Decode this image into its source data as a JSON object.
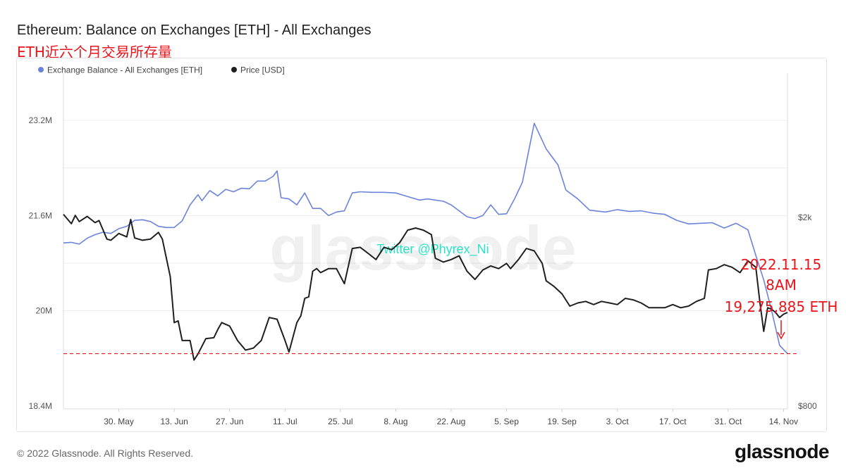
{
  "header": {
    "title": "Ethereum: Balance on Exchanges [ETH] - All Exchanges",
    "subtitle": "ETH近六个月交易所存量"
  },
  "footer": {
    "copyright": "© 2022 Glassnode. All Rights Reserved.",
    "brand": "glassnode"
  },
  "colors": {
    "balance": "#6b84db",
    "price": "#1f1f1f",
    "annotation": "#e8141b",
    "watermark_text": "#2be3c3"
  },
  "chart_data": {
    "type": "line",
    "title": "Ethereum: Balance on Exchanges [ETH] - All Exchanges",
    "x_ticks": [
      "30. May",
      "13. Jun",
      "27. Jun",
      "11. Jul",
      "25. Jul",
      "8. Aug",
      "22. Aug",
      "5. Sep",
      "19. Sep",
      "3. Oct",
      "17. Oct",
      "31. Oct",
      "14. Nov"
    ],
    "x_start": "2022-05-16",
    "x_end": "2022-11-15",
    "y_left": {
      "ticks": [
        "23.2M",
        "21.6M",
        "20M",
        "18.4M"
      ],
      "range": [
        18.4,
        23.2
      ],
      "unit": "M ETH"
    },
    "y_right": {
      "ticks": [
        "$2k",
        "$800"
      ],
      "scale": "log",
      "range": [
        800,
        2000
      ]
    },
    "grid": true,
    "legend_position": "top-left",
    "legend": [
      "Exchange Balance - All Exchanges [ETH]",
      "Price [USD]"
    ],
    "series": [
      {
        "name": "Exchange Balance - All Exchanges [ETH]",
        "axis": "left",
        "points": [
          [
            "2022-05-16",
            21.14
          ],
          [
            "2022-05-18",
            21.15
          ],
          [
            "2022-05-20",
            21.12
          ],
          [
            "2022-05-22",
            21.22
          ],
          [
            "2022-05-24",
            21.28
          ],
          [
            "2022-05-26",
            21.32
          ],
          [
            "2022-05-28",
            21.3
          ],
          [
            "2022-05-30",
            21.38
          ],
          [
            "2022-06-01",
            21.42
          ],
          [
            "2022-06-03",
            21.52
          ],
          [
            "2022-06-05",
            21.53
          ],
          [
            "2022-06-07",
            21.5
          ],
          [
            "2022-06-09",
            21.42
          ],
          [
            "2022-06-11",
            21.4
          ],
          [
            "2022-06-13",
            21.4
          ],
          [
            "2022-06-15",
            21.51
          ],
          [
            "2022-06-17",
            21.78
          ],
          [
            "2022-06-19",
            21.95
          ],
          [
            "2022-06-20",
            21.85
          ],
          [
            "2022-06-22",
            22.02
          ],
          [
            "2022-06-24",
            21.93
          ],
          [
            "2022-06-26",
            22.04
          ],
          [
            "2022-06-28",
            22.0
          ],
          [
            "2022-06-30",
            22.06
          ],
          [
            "2022-07-02",
            22.05
          ],
          [
            "2022-07-04",
            22.18
          ],
          [
            "2022-07-06",
            22.18
          ],
          [
            "2022-07-08",
            22.26
          ],
          [
            "2022-07-09",
            22.35
          ],
          [
            "2022-07-10",
            21.9
          ],
          [
            "2022-07-12",
            21.88
          ],
          [
            "2022-07-14",
            21.78
          ],
          [
            "2022-07-16",
            21.98
          ],
          [
            "2022-07-18",
            21.72
          ],
          [
            "2022-07-20",
            21.72
          ],
          [
            "2022-07-22",
            21.6
          ],
          [
            "2022-07-24",
            21.66
          ],
          [
            "2022-07-26",
            21.68
          ],
          [
            "2022-07-28",
            21.98
          ],
          [
            "2022-07-30",
            22.0
          ],
          [
            "2022-08-02",
            21.99
          ],
          [
            "2022-08-05",
            21.99
          ],
          [
            "2022-08-08",
            21.98
          ],
          [
            "2022-08-10",
            21.94
          ],
          [
            "2022-08-12",
            21.9
          ],
          [
            "2022-08-14",
            21.86
          ],
          [
            "2022-08-16",
            21.88
          ],
          [
            "2022-08-18",
            21.86
          ],
          [
            "2022-08-20",
            21.84
          ],
          [
            "2022-08-22",
            21.78
          ],
          [
            "2022-08-24",
            21.68
          ],
          [
            "2022-08-26",
            21.58
          ],
          [
            "2022-08-28",
            21.55
          ],
          [
            "2022-08-30",
            21.6
          ],
          [
            "2022-09-01",
            21.78
          ],
          [
            "2022-09-03",
            21.62
          ],
          [
            "2022-09-05",
            21.63
          ],
          [
            "2022-09-07",
            21.88
          ],
          [
            "2022-09-09",
            22.16
          ],
          [
            "2022-09-12",
            23.15
          ],
          [
            "2022-09-15",
            22.72
          ],
          [
            "2022-09-18",
            22.45
          ],
          [
            "2022-09-20",
            22.03
          ],
          [
            "2022-09-23",
            21.88
          ],
          [
            "2022-09-26",
            21.69
          ],
          [
            "2022-09-30",
            21.66
          ],
          [
            "2022-10-03",
            21.7
          ],
          [
            "2022-10-06",
            21.67
          ],
          [
            "2022-10-09",
            21.68
          ],
          [
            "2022-10-12",
            21.64
          ],
          [
            "2022-10-15",
            21.62
          ],
          [
            "2022-10-18",
            21.52
          ],
          [
            "2022-10-21",
            21.46
          ],
          [
            "2022-10-24",
            21.47
          ],
          [
            "2022-10-27",
            21.48
          ],
          [
            "2022-10-30",
            21.39
          ],
          [
            "2022-11-02",
            21.47
          ],
          [
            "2022-11-05",
            21.36
          ],
          [
            "2022-11-07",
            20.93
          ],
          [
            "2022-11-09",
            20.52
          ],
          [
            "2022-11-11",
            20.0
          ],
          [
            "2022-11-13",
            19.42
          ],
          [
            "2022-11-15",
            19.28
          ]
        ]
      },
      {
        "name": "Price [USD]",
        "axis": "right",
        "points": [
          [
            "2022-05-16",
            2030
          ],
          [
            "2022-05-18",
            1940
          ],
          [
            "2022-05-19",
            2020
          ],
          [
            "2022-05-20",
            1960
          ],
          [
            "2022-05-22",
            2010
          ],
          [
            "2022-05-24",
            1950
          ],
          [
            "2022-05-25",
            1970
          ],
          [
            "2022-05-27",
            1800
          ],
          [
            "2022-05-28",
            1790
          ],
          [
            "2022-05-30",
            1850
          ],
          [
            "2022-06-01",
            1820
          ],
          [
            "2022-06-02",
            1980
          ],
          [
            "2022-06-03",
            1810
          ],
          [
            "2022-06-05",
            1790
          ],
          [
            "2022-06-07",
            1800
          ],
          [
            "2022-06-09",
            1860
          ],
          [
            "2022-06-10",
            1800
          ],
          [
            "2022-06-12",
            1500
          ],
          [
            "2022-06-13",
            1200
          ],
          [
            "2022-06-14",
            1210
          ],
          [
            "2022-06-15",
            1100
          ],
          [
            "2022-06-17",
            1100
          ],
          [
            "2022-06-18",
            1000
          ],
          [
            "2022-06-19",
            1030
          ],
          [
            "2022-06-21",
            1110
          ],
          [
            "2022-06-23",
            1115
          ],
          [
            "2022-06-24",
            1160
          ],
          [
            "2022-06-25",
            1200
          ],
          [
            "2022-06-27",
            1180
          ],
          [
            "2022-06-29",
            1100
          ],
          [
            "2022-07-01",
            1050
          ],
          [
            "2022-07-03",
            1060
          ],
          [
            "2022-07-05",
            1100
          ],
          [
            "2022-07-07",
            1230
          ],
          [
            "2022-07-09",
            1220
          ],
          [
            "2022-07-11",
            1100
          ],
          [
            "2022-07-12",
            1040
          ],
          [
            "2022-07-14",
            1200
          ],
          [
            "2022-07-15",
            1240
          ],
          [
            "2022-07-16",
            1350
          ],
          [
            "2022-07-17",
            1360
          ],
          [
            "2022-07-18",
            1540
          ],
          [
            "2022-07-19",
            1560
          ],
          [
            "2022-07-20",
            1530
          ],
          [
            "2022-07-22",
            1560
          ],
          [
            "2022-07-24",
            1560
          ],
          [
            "2022-07-26",
            1450
          ],
          [
            "2022-07-28",
            1720
          ],
          [
            "2022-07-30",
            1730
          ],
          [
            "2022-08-01",
            1680
          ],
          [
            "2022-08-03",
            1630
          ],
          [
            "2022-08-05",
            1730
          ],
          [
            "2022-08-07",
            1710
          ],
          [
            "2022-08-09",
            1770
          ],
          [
            "2022-08-11",
            1880
          ],
          [
            "2022-08-13",
            1900
          ],
          [
            "2022-08-15",
            1880
          ],
          [
            "2022-08-17",
            1840
          ],
          [
            "2022-08-18",
            1640
          ],
          [
            "2022-08-20",
            1610
          ],
          [
            "2022-08-22",
            1630
          ],
          [
            "2022-08-24",
            1660
          ],
          [
            "2022-08-26",
            1540
          ],
          [
            "2022-08-28",
            1480
          ],
          [
            "2022-08-30",
            1550
          ],
          [
            "2022-09-01",
            1580
          ],
          [
            "2022-09-03",
            1560
          ],
          [
            "2022-09-05",
            1600
          ],
          [
            "2022-09-06",
            1560
          ],
          [
            "2022-09-08",
            1630
          ],
          [
            "2022-09-10",
            1720
          ],
          [
            "2022-09-12",
            1700
          ],
          [
            "2022-09-14",
            1600
          ],
          [
            "2022-09-15",
            1470
          ],
          [
            "2022-09-17",
            1430
          ],
          [
            "2022-09-19",
            1380
          ],
          [
            "2022-09-21",
            1300
          ],
          [
            "2022-09-23",
            1320
          ],
          [
            "2022-09-25",
            1330
          ],
          [
            "2022-09-27",
            1310
          ],
          [
            "2022-09-29",
            1330
          ],
          [
            "2022-10-01",
            1320
          ],
          [
            "2022-10-03",
            1310
          ],
          [
            "2022-10-05",
            1350
          ],
          [
            "2022-10-07",
            1340
          ],
          [
            "2022-10-09",
            1320
          ],
          [
            "2022-10-11",
            1290
          ],
          [
            "2022-10-13",
            1290
          ],
          [
            "2022-10-15",
            1290
          ],
          [
            "2022-10-17",
            1310
          ],
          [
            "2022-10-19",
            1290
          ],
          [
            "2022-10-21",
            1300
          ],
          [
            "2022-10-23",
            1330
          ],
          [
            "2022-10-25",
            1350
          ],
          [
            "2022-10-26",
            1550
          ],
          [
            "2022-10-28",
            1560
          ],
          [
            "2022-10-30",
            1590
          ],
          [
            "2022-11-01",
            1570
          ],
          [
            "2022-11-03",
            1530
          ],
          [
            "2022-11-05",
            1620
          ],
          [
            "2022-11-07",
            1570
          ],
          [
            "2022-11-08",
            1330
          ],
          [
            "2022-11-09",
            1150
          ],
          [
            "2022-11-10",
            1290
          ],
          [
            "2022-11-11",
            1280
          ],
          [
            "2022-11-12",
            1260
          ],
          [
            "2022-11-13",
            1230
          ],
          [
            "2022-11-14",
            1250
          ],
          [
            "2022-11-15",
            1260
          ]
        ]
      }
    ],
    "watermark": "glassnode",
    "twitter_handle": "Twitter @Phyrex_Ni",
    "annotation": {
      "lines": [
        "2022.11.15",
        "8AM",
        "19,275,885 ETH"
      ],
      "reference_value": 19.28,
      "reference_axis": "left",
      "style": "dashed-red"
    }
  }
}
